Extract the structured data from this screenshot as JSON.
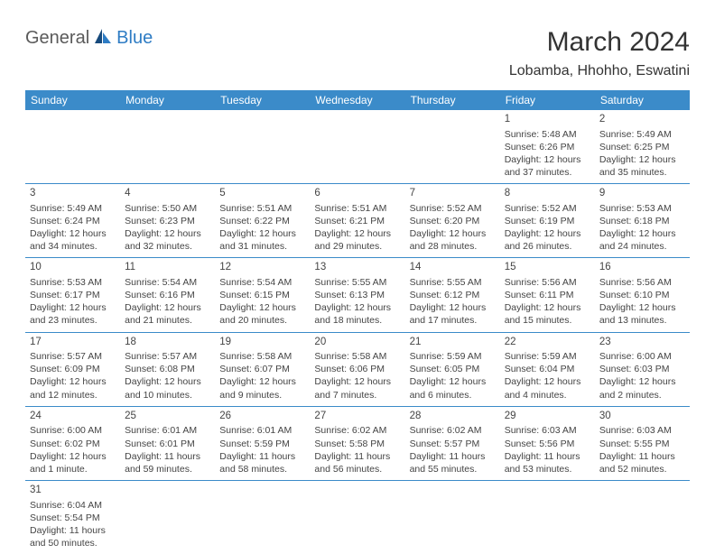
{
  "logo": {
    "general": "General",
    "blue": "Blue"
  },
  "title": "March 2024",
  "location": "Lobamba, Hhohho, Eswatini",
  "colors": {
    "header_bg": "#3b8bc9",
    "header_text": "#ffffff",
    "border": "#3b8bc9",
    "logo_blue": "#2e7cc4",
    "logo_gray": "#5a5a5a"
  },
  "weekdays": [
    "Sunday",
    "Monday",
    "Tuesday",
    "Wednesday",
    "Thursday",
    "Friday",
    "Saturday"
  ],
  "leading_blanks": 5,
  "days": [
    {
      "n": "1",
      "sunrise": "5:48 AM",
      "sunset": "6:26 PM",
      "daylight": "12 hours and 37 minutes."
    },
    {
      "n": "2",
      "sunrise": "5:49 AM",
      "sunset": "6:25 PM",
      "daylight": "12 hours and 35 minutes."
    },
    {
      "n": "3",
      "sunrise": "5:49 AM",
      "sunset": "6:24 PM",
      "daylight": "12 hours and 34 minutes."
    },
    {
      "n": "4",
      "sunrise": "5:50 AM",
      "sunset": "6:23 PM",
      "daylight": "12 hours and 32 minutes."
    },
    {
      "n": "5",
      "sunrise": "5:51 AM",
      "sunset": "6:22 PM",
      "daylight": "12 hours and 31 minutes."
    },
    {
      "n": "6",
      "sunrise": "5:51 AM",
      "sunset": "6:21 PM",
      "daylight": "12 hours and 29 minutes."
    },
    {
      "n": "7",
      "sunrise": "5:52 AM",
      "sunset": "6:20 PM",
      "daylight": "12 hours and 28 minutes."
    },
    {
      "n": "8",
      "sunrise": "5:52 AM",
      "sunset": "6:19 PM",
      "daylight": "12 hours and 26 minutes."
    },
    {
      "n": "9",
      "sunrise": "5:53 AM",
      "sunset": "6:18 PM",
      "daylight": "12 hours and 24 minutes."
    },
    {
      "n": "10",
      "sunrise": "5:53 AM",
      "sunset": "6:17 PM",
      "daylight": "12 hours and 23 minutes."
    },
    {
      "n": "11",
      "sunrise": "5:54 AM",
      "sunset": "6:16 PM",
      "daylight": "12 hours and 21 minutes."
    },
    {
      "n": "12",
      "sunrise": "5:54 AM",
      "sunset": "6:15 PM",
      "daylight": "12 hours and 20 minutes."
    },
    {
      "n": "13",
      "sunrise": "5:55 AM",
      "sunset": "6:13 PM",
      "daylight": "12 hours and 18 minutes."
    },
    {
      "n": "14",
      "sunrise": "5:55 AM",
      "sunset": "6:12 PM",
      "daylight": "12 hours and 17 minutes."
    },
    {
      "n": "15",
      "sunrise": "5:56 AM",
      "sunset": "6:11 PM",
      "daylight": "12 hours and 15 minutes."
    },
    {
      "n": "16",
      "sunrise": "5:56 AM",
      "sunset": "6:10 PM",
      "daylight": "12 hours and 13 minutes."
    },
    {
      "n": "17",
      "sunrise": "5:57 AM",
      "sunset": "6:09 PM",
      "daylight": "12 hours and 12 minutes."
    },
    {
      "n": "18",
      "sunrise": "5:57 AM",
      "sunset": "6:08 PM",
      "daylight": "12 hours and 10 minutes."
    },
    {
      "n": "19",
      "sunrise": "5:58 AM",
      "sunset": "6:07 PM",
      "daylight": "12 hours and 9 minutes."
    },
    {
      "n": "20",
      "sunrise": "5:58 AM",
      "sunset": "6:06 PM",
      "daylight": "12 hours and 7 minutes."
    },
    {
      "n": "21",
      "sunrise": "5:59 AM",
      "sunset": "6:05 PM",
      "daylight": "12 hours and 6 minutes."
    },
    {
      "n": "22",
      "sunrise": "5:59 AM",
      "sunset": "6:04 PM",
      "daylight": "12 hours and 4 minutes."
    },
    {
      "n": "23",
      "sunrise": "6:00 AM",
      "sunset": "6:03 PM",
      "daylight": "12 hours and 2 minutes."
    },
    {
      "n": "24",
      "sunrise": "6:00 AM",
      "sunset": "6:02 PM",
      "daylight": "12 hours and 1 minute."
    },
    {
      "n": "25",
      "sunrise": "6:01 AM",
      "sunset": "6:01 PM",
      "daylight": "11 hours and 59 minutes."
    },
    {
      "n": "26",
      "sunrise": "6:01 AM",
      "sunset": "5:59 PM",
      "daylight": "11 hours and 58 minutes."
    },
    {
      "n": "27",
      "sunrise": "6:02 AM",
      "sunset": "5:58 PM",
      "daylight": "11 hours and 56 minutes."
    },
    {
      "n": "28",
      "sunrise": "6:02 AM",
      "sunset": "5:57 PM",
      "daylight": "11 hours and 55 minutes."
    },
    {
      "n": "29",
      "sunrise": "6:03 AM",
      "sunset": "5:56 PM",
      "daylight": "11 hours and 53 minutes."
    },
    {
      "n": "30",
      "sunrise": "6:03 AM",
      "sunset": "5:55 PM",
      "daylight": "11 hours and 52 minutes."
    },
    {
      "n": "31",
      "sunrise": "6:04 AM",
      "sunset": "5:54 PM",
      "daylight": "11 hours and 50 minutes."
    }
  ],
  "labels": {
    "sunrise": "Sunrise:",
    "sunset": "Sunset:",
    "daylight": "Daylight:"
  }
}
